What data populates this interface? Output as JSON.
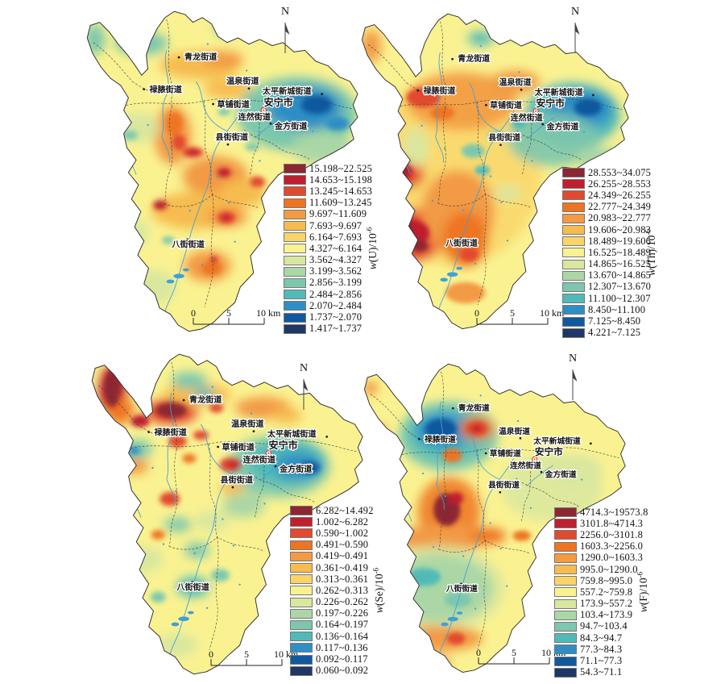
{
  "figure": {
    "background": "#ffffff"
  },
  "north_label": "N",
  "scalebar": {
    "tick_labels": [
      "0",
      "5",
      "10 km"
    ]
  },
  "legend_colors": [
    "#8C2633",
    "#C01F2F",
    "#E2492F",
    "#EE7420",
    "#F29A44",
    "#F6BC4F",
    "#FAD466",
    "#FAF291",
    "#D9E79F",
    "#ABD7A6",
    "#7CC7AD",
    "#51BAB8",
    "#2F8EC4",
    "#11599F",
    "#1E3766"
  ],
  "map_accent_colors": {
    "river": "#3FA0D8",
    "boundary": "#3f3f3f",
    "city_marker": "#D8423E"
  },
  "streets": [
    "青龙街道",
    "禄脿街道",
    "温泉街道",
    "草铺街道",
    "太平新城街道",
    "安宁市",
    "连然街道",
    "金方街道",
    "县街街道",
    "八街街道"
  ],
  "panels": [
    {
      "element": "U",
      "symbol": "w",
      "base": "(U)/10",
      "exp": "-6",
      "ranges": [
        "15.198~22.525",
        "14.653~15.198",
        "13.245~14.653",
        "11.609~13.245",
        "9.697~11.609",
        "7.693~9.697",
        "6.164~7.693",
        "4.327~6.164",
        "3.562~4.327",
        "3.199~3.562",
        "2.856~3.199",
        "2.484~2.856",
        "2.070~2.484",
        "1.737~2.070",
        "1.417~1.737"
      ]
    },
    {
      "element": "Th",
      "symbol": "w",
      "base": "(Th)/10",
      "exp": "-6",
      "ranges": [
        "28.553~34.075",
        "26.255~28.553",
        "24.349~26.255",
        "22.777~24.349",
        "20.983~22.777",
        "19.606~20.983",
        "18.489~19.606",
        "16.525~18.489",
        "14.865~16.525",
        "13.670~14.865",
        "12.307~13.670",
        "11.100~12.307",
        "8.450~11.100",
        "7.125~8.450",
        "4.221~7.125"
      ]
    },
    {
      "element": "Se",
      "symbol": "w",
      "base": "(Se)/10",
      "exp": "-6",
      "ranges": [
        "6.282~14.492",
        "1.002~6.282",
        "0.590~1.002",
        "0.491~0.590",
        "0.419~0.491",
        "0.361~0.419",
        "0.313~0.361",
        "0.262~0.313",
        "0.226~0.262",
        "0.197~0.226",
        "0.164~0.197",
        "0.136~0.164",
        "0.117~0.136",
        "0.092~0.117",
        "0.060~0.092"
      ]
    },
    {
      "element": "F",
      "symbol": "w",
      "base": "(F)/10",
      "exp": "-6",
      "ranges": [
        "4714.3~19573.8",
        "3101.8~4714.3",
        "2256.0~3101.8",
        "1603.3~2256.0",
        "1290.0~1603.3",
        "995.0~1290.0",
        "759.8~995.0",
        "557.2~759.8",
        "173.9~557.2",
        "103.4~173.9",
        "94.7~103.4",
        "84.3~94.7",
        "77.3~84.3",
        "71.1~77.3",
        "54.3~71.1"
      ]
    }
  ]
}
